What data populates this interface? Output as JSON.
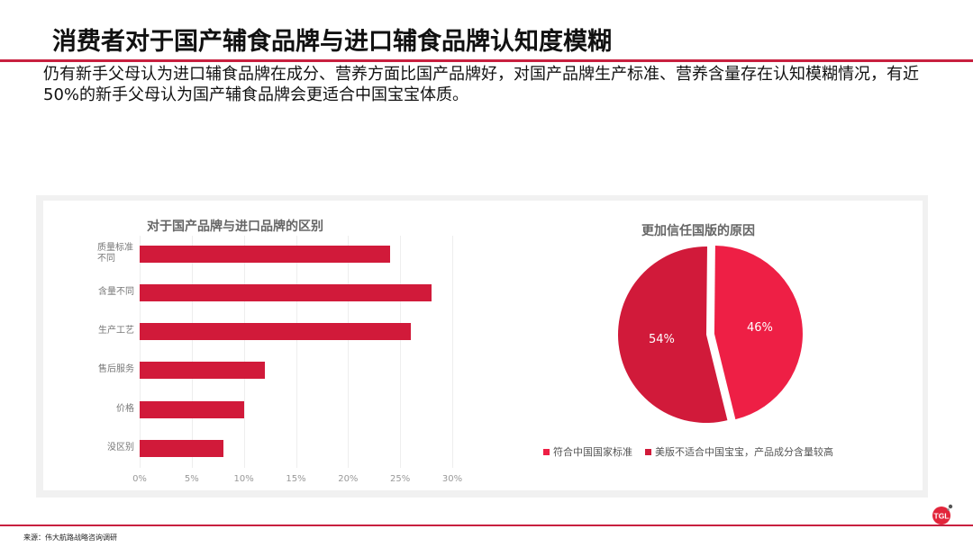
{
  "header": {
    "title": "消费者对于国产辅食品牌与进口辅食品牌认知度模糊",
    "subtitle": "仍有新手父母认为进口辅食品牌在成分、营养方面比国产品牌好，对国产品牌生产标准、营养含量存在认知模糊情况，有近50%的新手父母认为国产辅食品牌会更适合中国宝宝体质。"
  },
  "colors": {
    "accent": "#C8203F",
    "bar": "#D11A3A",
    "pie_light": "#EE1F45",
    "pie_dark": "#D11A3A"
  },
  "chart_data": [
    {
      "type": "bar",
      "orientation": "horizontal",
      "title": "对于国产品牌与进口品牌的区别",
      "categories": [
        "质量标准不同",
        "含量不同",
        "生产工艺",
        "售后服务",
        "价格",
        "没区别"
      ],
      "category_display": [
        "质量标准\n不同",
        "含量不同",
        "生产工艺",
        "售后服务",
        "价格",
        "没区别"
      ],
      "values": [
        24,
        28,
        26,
        12,
        10,
        8
      ],
      "unit": "%",
      "xlabel": "",
      "ylabel": "",
      "xlim": [
        0,
        30
      ],
      "xticks": [
        "0%",
        "5%",
        "10%",
        "15%",
        "20%",
        "25%",
        "30%"
      ],
      "grid": true,
      "legend": false
    },
    {
      "type": "pie",
      "title": "更加信任国版的原因",
      "categories": [
        "符合中国国家标准",
        "美版不适合中国宝宝，产品成分含量较高"
      ],
      "values": [
        46,
        54
      ],
      "labels": [
        "46%",
        "54%"
      ],
      "colors": [
        "#EE1F45",
        "#D11A3A"
      ],
      "legend_position": "bottom",
      "exploded": true
    }
  ],
  "bar_chart": {
    "title": "对于国产品牌与进口品牌的区别",
    "labels": [
      "质量标准不同",
      "含量不同",
      "生产工艺",
      "售后服务",
      "价格",
      "没区别"
    ],
    "ticks": [
      "0%",
      "5%",
      "10%",
      "15%",
      "20%",
      "25%",
      "30%"
    ]
  },
  "pie_chart": {
    "title": "更加信任国版的原因",
    "slice_labels": [
      "46%",
      "54%"
    ],
    "legend": [
      "符合中国国家标准",
      "美版不适合中国宝宝，产品成分含量较高"
    ]
  },
  "footer": {
    "source": "来源：伟大航路战略咨询调研",
    "logo_text": "TGL"
  }
}
